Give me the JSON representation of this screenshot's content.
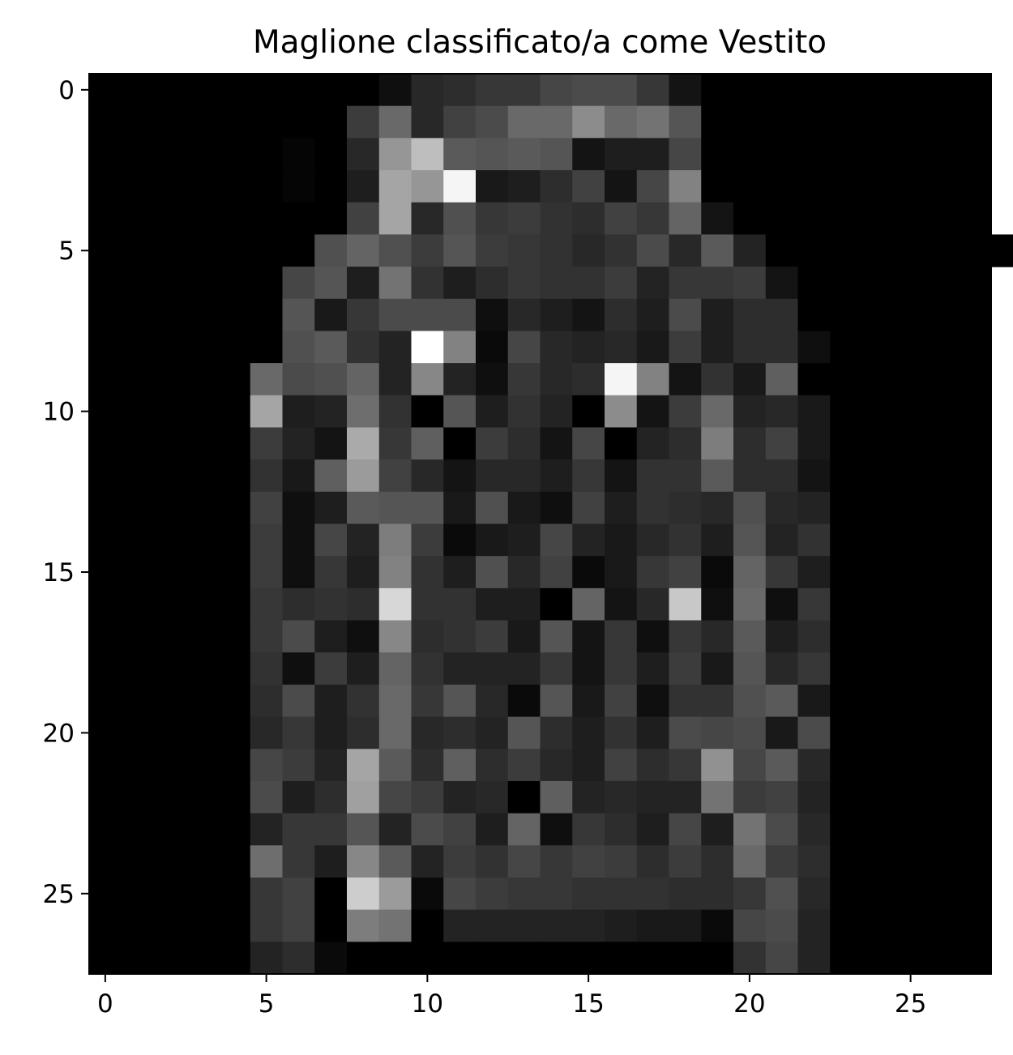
{
  "chart_data": {
    "type": "heatmap",
    "title": "Maglione classificato/a come Vestito",
    "xlabel": "",
    "ylabel": "",
    "colormap": "gray",
    "value_range": [
      0,
      255
    ],
    "xlim": [
      -0.5,
      27.5
    ],
    "ylim": [
      27.5,
      -0.5
    ],
    "x_ticks": [
      0,
      5,
      10,
      15,
      20,
      25
    ],
    "y_ticks": [
      0,
      5,
      10,
      15,
      20,
      25
    ],
    "x_tick_labels": [
      "0",
      "5",
      "10",
      "15",
      "20",
      "25"
    ],
    "y_tick_labels": [
      "0",
      "5",
      "10",
      "15",
      "20",
      "25"
    ],
    "grid": false,
    "legend": "none",
    "rows": 28,
    "cols": 28,
    "pixels": [
      [
        0,
        0,
        0,
        0,
        0,
        0,
        0,
        0,
        0,
        15,
        40,
        45,
        55,
        55,
        70,
        75,
        75,
        55,
        20,
        0,
        0,
        0,
        0,
        0,
        0,
        0,
        0,
        0
      ],
      [
        0,
        0,
        0,
        0,
        0,
        0,
        0,
        0,
        60,
        105,
        40,
        65,
        75,
        105,
        105,
        140,
        105,
        115,
        85,
        0,
        0,
        0,
        0,
        0,
        0,
        0,
        0,
        0
      ],
      [
        0,
        0,
        0,
        0,
        0,
        0,
        5,
        0,
        40,
        150,
        190,
        90,
        85,
        90,
        85,
        20,
        30,
        30,
        70,
        0,
        0,
        0,
        0,
        0,
        0,
        0,
        0,
        0
      ],
      [
        0,
        0,
        0,
        0,
        0,
        0,
        5,
        0,
        30,
        165,
        150,
        245,
        25,
        30,
        45,
        65,
        20,
        70,
        130,
        0,
        0,
        0,
        0,
        0,
        0,
        0,
        0,
        0
      ],
      [
        0,
        0,
        0,
        0,
        0,
        0,
        0,
        0,
        65,
        165,
        40,
        80,
        55,
        60,
        50,
        45,
        65,
        55,
        100,
        20,
        0,
        0,
        0,
        0,
        0,
        0,
        0,
        0
      ],
      [
        0,
        0,
        0,
        0,
        0,
        0,
        0,
        80,
        100,
        80,
        60,
        85,
        60,
        55,
        50,
        40,
        50,
        75,
        40,
        90,
        35,
        0,
        0,
        0,
        0,
        0,
        0,
        0,
        0
      ],
      [
        0,
        0,
        0,
        0,
        0,
        0,
        70,
        85,
        30,
        115,
        50,
        30,
        45,
        55,
        50,
        50,
        60,
        35,
        55,
        55,
        60,
        20,
        0,
        0,
        0,
        0,
        0,
        0
      ],
      [
        0,
        0,
        0,
        0,
        0,
        0,
        85,
        25,
        55,
        75,
        75,
        75,
        15,
        40,
        30,
        20,
        45,
        30,
        75,
        30,
        45,
        45,
        0,
        0,
        0,
        0,
        0,
        0
      ],
      [
        0,
        0,
        0,
        0,
        0,
        0,
        80,
        90,
        50,
        35,
        255,
        130,
        10,
        70,
        40,
        35,
        40,
        25,
        60,
        30,
        45,
        45,
        15,
        0,
        0,
        0,
        0,
        0
      ],
      [
        0,
        0,
        0,
        0,
        0,
        105,
        75,
        80,
        100,
        35,
        135,
        35,
        15,
        55,
        40,
        45,
        245,
        130,
        20,
        50,
        25,
        95,
        0,
        0,
        0,
        0,
        0,
        0
      ],
      [
        0,
        0,
        0,
        0,
        0,
        165,
        30,
        35,
        110,
        50,
        0,
        85,
        30,
        50,
        35,
        0,
        140,
        20,
        60,
        105,
        35,
        40,
        25,
        0,
        0,
        0,
        0,
        0
      ],
      [
        0,
        0,
        0,
        0,
        0,
        60,
        35,
        20,
        170,
        55,
        95,
        0,
        60,
        45,
        20,
        70,
        0,
        35,
        45,
        125,
        45,
        65,
        25,
        0,
        0,
        0,
        0,
        0
      ],
      [
        0,
        0,
        0,
        0,
        0,
        50,
        25,
        95,
        155,
        65,
        40,
        20,
        40,
        40,
        30,
        55,
        20,
        50,
        50,
        90,
        45,
        45,
        20,
        0,
        0,
        0,
        0,
        0
      ],
      [
        0,
        0,
        0,
        0,
        0,
        65,
        15,
        30,
        90,
        85,
        85,
        25,
        80,
        25,
        15,
        65,
        30,
        50,
        45,
        40,
        80,
        40,
        35,
        0,
        0,
        0,
        0,
        0
      ],
      [
        0,
        0,
        0,
        0,
        0,
        60,
        15,
        70,
        35,
        125,
        60,
        10,
        25,
        30,
        70,
        35,
        25,
        40,
        50,
        30,
        85,
        35,
        50,
        0,
        0,
        0,
        0,
        0
      ],
      [
        0,
        0,
        0,
        0,
        0,
        60,
        15,
        55,
        30,
        130,
        50,
        30,
        80,
        40,
        65,
        10,
        25,
        55,
        65,
        10,
        100,
        55,
        30,
        0,
        0,
        0,
        0,
        0
      ],
      [
        0,
        0,
        0,
        0,
        0,
        55,
        45,
        50,
        45,
        215,
        50,
        50,
        30,
        30,
        0,
        100,
        20,
        40,
        200,
        15,
        105,
        15,
        55,
        0,
        0,
        0,
        0,
        0
      ],
      [
        0,
        0,
        0,
        0,
        0,
        55,
        75,
        30,
        15,
        135,
        45,
        50,
        60,
        25,
        85,
        20,
        55,
        15,
        55,
        40,
        90,
        30,
        45,
        0,
        0,
        0,
        0,
        0
      ],
      [
        0,
        0,
        0,
        0,
        0,
        50,
        15,
        60,
        30,
        100,
        50,
        35,
        35,
        35,
        55,
        20,
        55,
        30,
        60,
        25,
        85,
        40,
        55,
        0,
        0,
        0,
        0,
        0
      ],
      [
        0,
        0,
        0,
        0,
        0,
        45,
        75,
        30,
        50,
        105,
        55,
        85,
        40,
        10,
        85,
        25,
        65,
        15,
        50,
        50,
        80,
        90,
        25,
        0,
        0,
        0,
        0,
        0
      ],
      [
        0,
        0,
        0,
        0,
        0,
        40,
        55,
        30,
        45,
        105,
        40,
        45,
        35,
        85,
        45,
        30,
        50,
        30,
        75,
        70,
        75,
        25,
        75,
        0,
        0,
        0,
        0,
        0
      ],
      [
        0,
        0,
        0,
        0,
        0,
        70,
        60,
        35,
        165,
        90,
        45,
        95,
        45,
        60,
        40,
        30,
        65,
        45,
        55,
        145,
        70,
        90,
        40,
        0,
        0,
        0,
        0,
        0
      ],
      [
        0,
        0,
        0,
        0,
        0,
        75,
        30,
        45,
        160,
        70,
        60,
        35,
        40,
        0,
        95,
        35,
        40,
        35,
        35,
        115,
        60,
        65,
        35,
        0,
        0,
        0,
        0,
        0
      ],
      [
        0,
        0,
        0,
        0,
        0,
        35,
        55,
        55,
        85,
        35,
        75,
        65,
        30,
        100,
        15,
        55,
        45,
        30,
        70,
        30,
        115,
        75,
        40,
        0,
        0,
        0,
        0,
        0
      ],
      [
        0,
        0,
        0,
        0,
        0,
        110,
        55,
        30,
        135,
        90,
        35,
        60,
        50,
        70,
        55,
        65,
        60,
        45,
        60,
        45,
        105,
        60,
        45,
        0,
        0,
        0,
        0,
        0
      ],
      [
        0,
        0,
        0,
        0,
        0,
        55,
        65,
        0,
        205,
        155,
        10,
        70,
        60,
        55,
        55,
        50,
        50,
        50,
        45,
        45,
        55,
        80,
        40,
        0,
        0,
        0,
        0,
        0
      ],
      [
        0,
        0,
        0,
        0,
        0,
        55,
        65,
        0,
        125,
        115,
        0,
        35,
        35,
        35,
        35,
        35,
        30,
        25,
        25,
        10,
        70,
        75,
        35,
        0,
        0,
        0,
        0,
        0
      ],
      [
        0,
        0,
        0,
        0,
        0,
        35,
        45,
        10,
        0,
        0,
        0,
        0,
        0,
        0,
        0,
        0,
        0,
        0,
        0,
        0,
        50,
        70,
        35,
        0,
        0,
        0,
        0,
        0
      ]
    ]
  }
}
